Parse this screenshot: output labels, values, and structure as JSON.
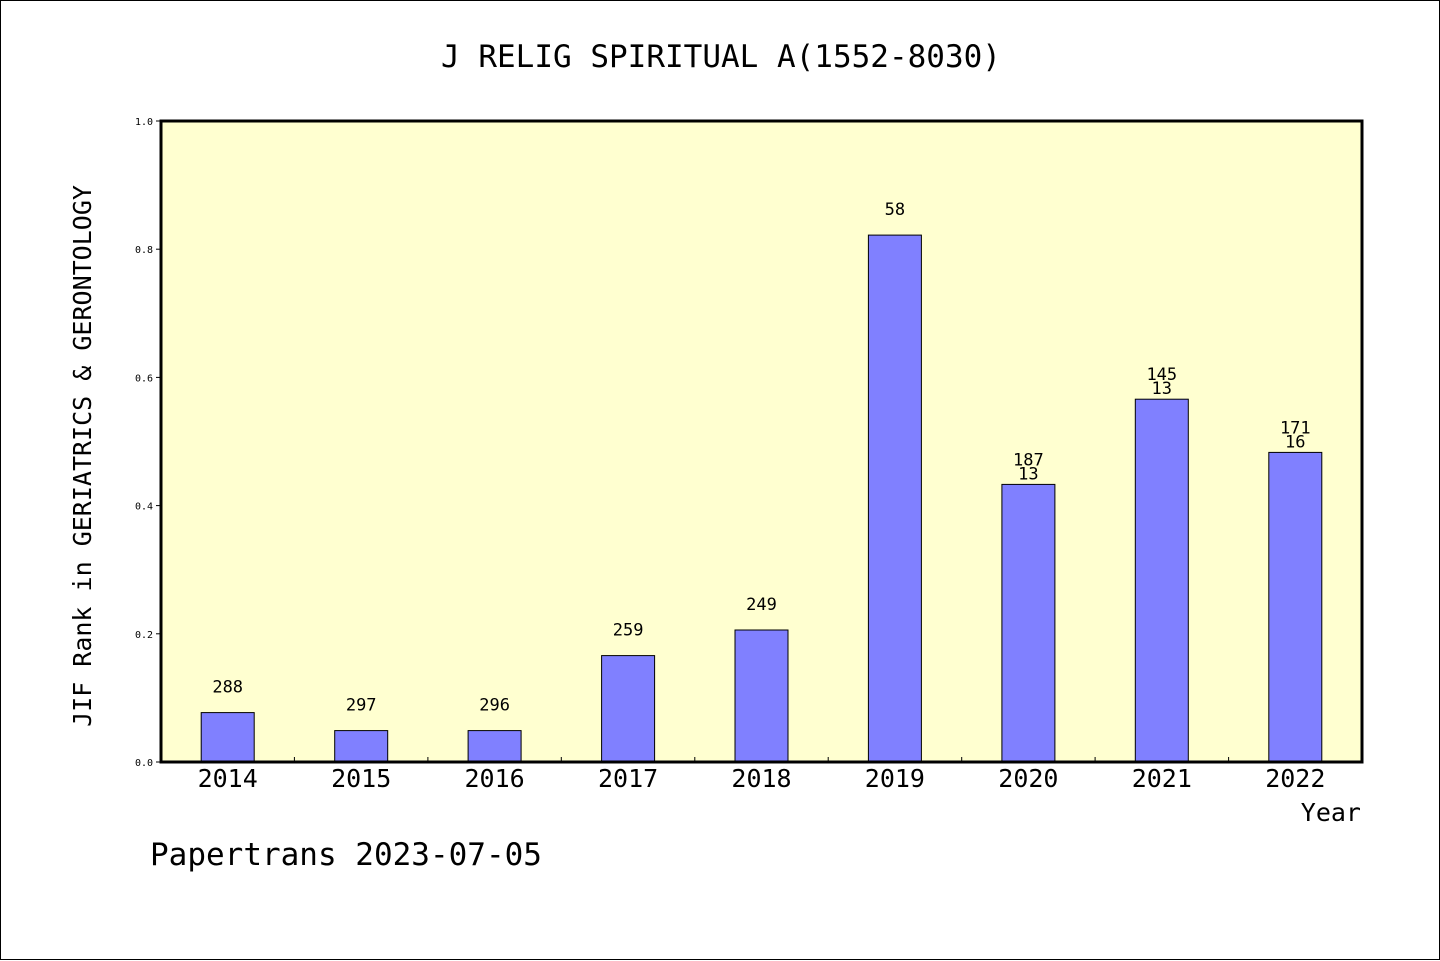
{
  "chart_data": {
    "type": "bar",
    "title": "J RELIG SPIRITUAL A(1552-8030)",
    "xlabel": "Year",
    "ylabel": "JIF Rank in GERIATRICS & GERONTOLOGY",
    "ylim": [
      0.0,
      1.0
    ],
    "yticks": [
      "0.0",
      "0.2",
      "0.4",
      "0.6",
      "0.8",
      "1.0"
    ],
    "ytick_values": [
      0.0,
      0.2,
      0.4,
      0.6,
      0.8,
      1.0
    ],
    "categories": [
      "2014",
      "2015",
      "2016",
      "2017",
      "2018",
      "2019",
      "2020",
      "2021",
      "2022"
    ],
    "values": [
      0.077,
      0.049,
      0.049,
      0.166,
      0.206,
      0.822,
      0.433,
      0.566,
      0.483
    ],
    "labels_top": [
      "288",
      "297",
      "296",
      "259",
      "249",
      "58",
      "187",
      "145",
      "171"
    ],
    "labels_second": [
      "",
      "",
      "",
      "",
      "",
      "",
      "13",
      "13",
      "16"
    ],
    "grid": false,
    "legend": "none"
  },
  "footer": {
    "text": "Papertrans 2023-07-05"
  },
  "colors": {
    "plot_background": "#ffffd0",
    "bar_fill": "#8080ff",
    "bar_stroke": "#000000",
    "axis": "#000000",
    "text": "#000000"
  }
}
